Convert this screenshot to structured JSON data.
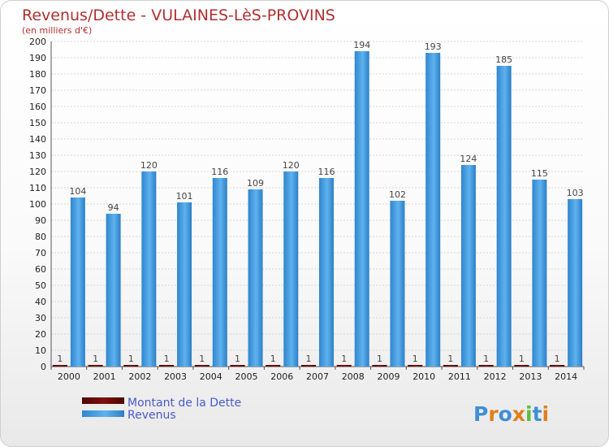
{
  "chart_data": {
    "type": "bar",
    "title": "Revenus/Dette - VULAINES-LèS-PROVINS",
    "subtitle": "(en milliers d'€)",
    "categories": [
      "2000",
      "2001",
      "2002",
      "2003",
      "2004",
      "2005",
      "2006",
      "2007",
      "2008",
      "2009",
      "2010",
      "2011",
      "2012",
      "2013",
      "2014"
    ],
    "series": [
      {
        "name": "Montant de la Dette",
        "color": "#6b0a0a",
        "values": [
          1,
          1,
          1,
          1,
          1,
          1,
          1,
          1,
          1,
          1,
          1,
          1,
          1,
          1,
          1
        ]
      },
      {
        "name": "Revenus",
        "color": "#4aa3e6",
        "values": [
          104,
          94,
          120,
          101,
          116,
          109,
          120,
          116,
          194,
          102,
          193,
          124,
          185,
          115,
          103
        ]
      }
    ],
    "ylim": [
      0,
      200
    ],
    "ytick_step": 10,
    "grid": true,
    "legend_position": "bottom-left"
  },
  "branding": {
    "logo_text": "Proxiti"
  }
}
